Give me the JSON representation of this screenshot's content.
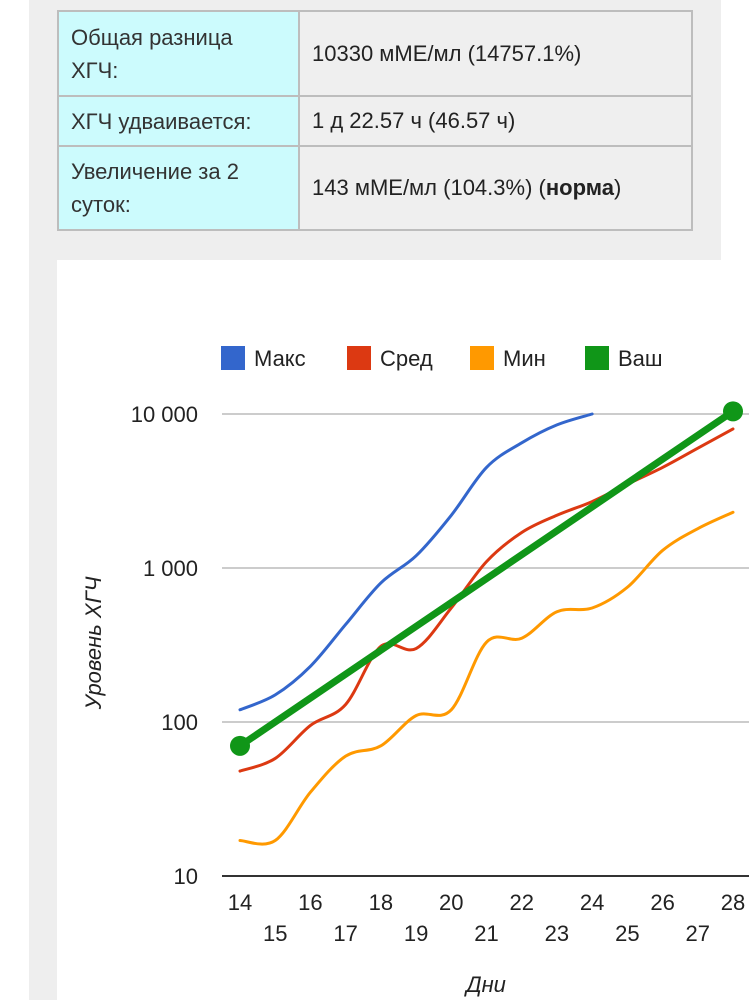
{
  "results_table": {
    "rows": [
      {
        "label": "Общая разница ХГЧ:",
        "value": "10330 мМЕ/мл (14757.1%)"
      },
      {
        "label": "ХГЧ удваивается:",
        "value": "1 д 22.57 ч (46.57 ч)"
      },
      {
        "label": "Увеличение за 2 суток:",
        "value_prefix": "143 мМЕ/мл (104.3%) (",
        "value_bold": "норма",
        "value_suffix": ")"
      }
    ]
  },
  "colors": {
    "max": "#3366cc",
    "avg": "#dc3912",
    "min": "#ff9900",
    "yours": "#109618",
    "label_cell": "#ccfbfd",
    "value_cell": "#efefef"
  },
  "chart_data": {
    "type": "line",
    "y_scale": "log",
    "ylim": [
      10,
      10000
    ],
    "xlim": [
      14,
      28
    ],
    "xlabel": "Дни",
    "ylabel": "Уровень ХГЧ",
    "legend_position": "top",
    "y_ticks": [
      {
        "value": 10,
        "label": "10"
      },
      {
        "value": 100,
        "label": "100"
      },
      {
        "value": 1000,
        "label": "1 000"
      },
      {
        "value": 10000,
        "label": "10 000"
      }
    ],
    "x_ticks": [
      14,
      15,
      16,
      17,
      18,
      19,
      20,
      21,
      22,
      23,
      24,
      25,
      26,
      27,
      28
    ],
    "series": [
      {
        "name": "Макс",
        "key": "max",
        "x": [
          14,
          15,
          16,
          17,
          18,
          19,
          20,
          21,
          22,
          23,
          24
        ],
        "values": [
          120,
          150,
          230,
          430,
          800,
          1200,
          2200,
          4500,
          6500,
          8500,
          10000
        ]
      },
      {
        "name": "Сред",
        "key": "avg",
        "x": [
          14,
          15,
          16,
          17,
          18,
          19,
          20,
          21,
          22,
          23,
          24,
          25,
          26,
          27,
          28
        ],
        "values": [
          48,
          58,
          95,
          130,
          310,
          300,
          550,
          1100,
          1700,
          2200,
          2700,
          3500,
          4500,
          6000,
          8000
        ]
      },
      {
        "name": "Мин",
        "key": "min",
        "x": [
          14,
          15,
          16,
          17,
          18,
          19,
          20,
          21,
          22,
          23,
          24,
          25,
          26,
          27,
          28
        ],
        "values": [
          17,
          17,
          35,
          60,
          70,
          110,
          120,
          330,
          350,
          520,
          550,
          750,
          1300,
          1800,
          2300
        ]
      },
      {
        "name": "Ваш",
        "key": "yours",
        "x": [
          14,
          28
        ],
        "values": [
          70,
          10400
        ]
      }
    ]
  }
}
